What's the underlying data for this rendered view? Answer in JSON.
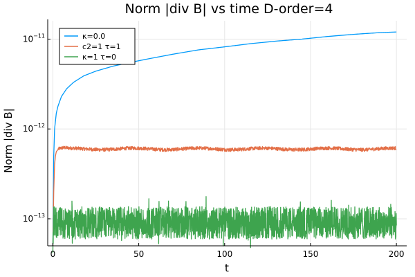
{
  "chart_data": {
    "type": "line",
    "title": "Norm |div B| vs time D-order=4",
    "xlabel": "t",
    "ylabel": "Norm |div B|",
    "yscale": "log",
    "xlim": [
      -3,
      206
    ],
    "ylim": [
      5e-14,
      1.6e-11
    ],
    "grid": true,
    "legend_position": "top-left",
    "x_ticks": [
      0,
      50,
      100,
      150,
      200
    ],
    "y_ticks": [
      {
        "value": 1e-13,
        "base": "10",
        "exp": "−13"
      },
      {
        "value": 1e-12,
        "base": "10",
        "exp": "−12"
      },
      {
        "value": 1e-11,
        "base": "10",
        "exp": "−11"
      }
    ],
    "series": [
      {
        "name": "κ=0.0",
        "color": "#009AFA",
        "x": [
          0,
          0.5,
          1,
          2,
          3,
          5,
          8,
          12,
          18,
          25,
          35,
          45,
          55,
          70,
          85,
          100,
          115,
          130,
          145,
          160,
          175,
          190,
          200
        ],
        "y": [
          5e-14,
          5e-13,
          1e-12,
          1.5e-12,
          1.8e-12,
          2.3e-12,
          2.8e-12,
          3.3e-12,
          3.9e-12,
          4.4e-12,
          5e-12,
          5.5e-12,
          6e-12,
          6.8e-12,
          7.6e-12,
          8.2e-12,
          8.9e-12,
          9.5e-12,
          1e-11,
          1.07e-11,
          1.13e-11,
          1.18e-11,
          1.2e-11
        ]
      },
      {
        "name": "c2=1 τ=1",
        "color": "#E36F47",
        "base_value": 6e-13,
        "x": [
          0,
          0.5,
          1,
          1.5,
          2,
          3,
          4,
          6,
          10,
          200
        ],
        "y": [
          5e-14,
          2e-13,
          4e-13,
          5e-13,
          5.6e-13,
          5.9e-13,
          6e-13,
          6.1e-13,
          6e-13,
          6e-13
        ]
      },
      {
        "name": "κ=1 τ=0",
        "color": "#3EA44E",
        "base_value": 9e-14,
        "x": [
          0,
          200
        ],
        "y": [
          9e-14,
          9e-14
        ]
      }
    ]
  }
}
